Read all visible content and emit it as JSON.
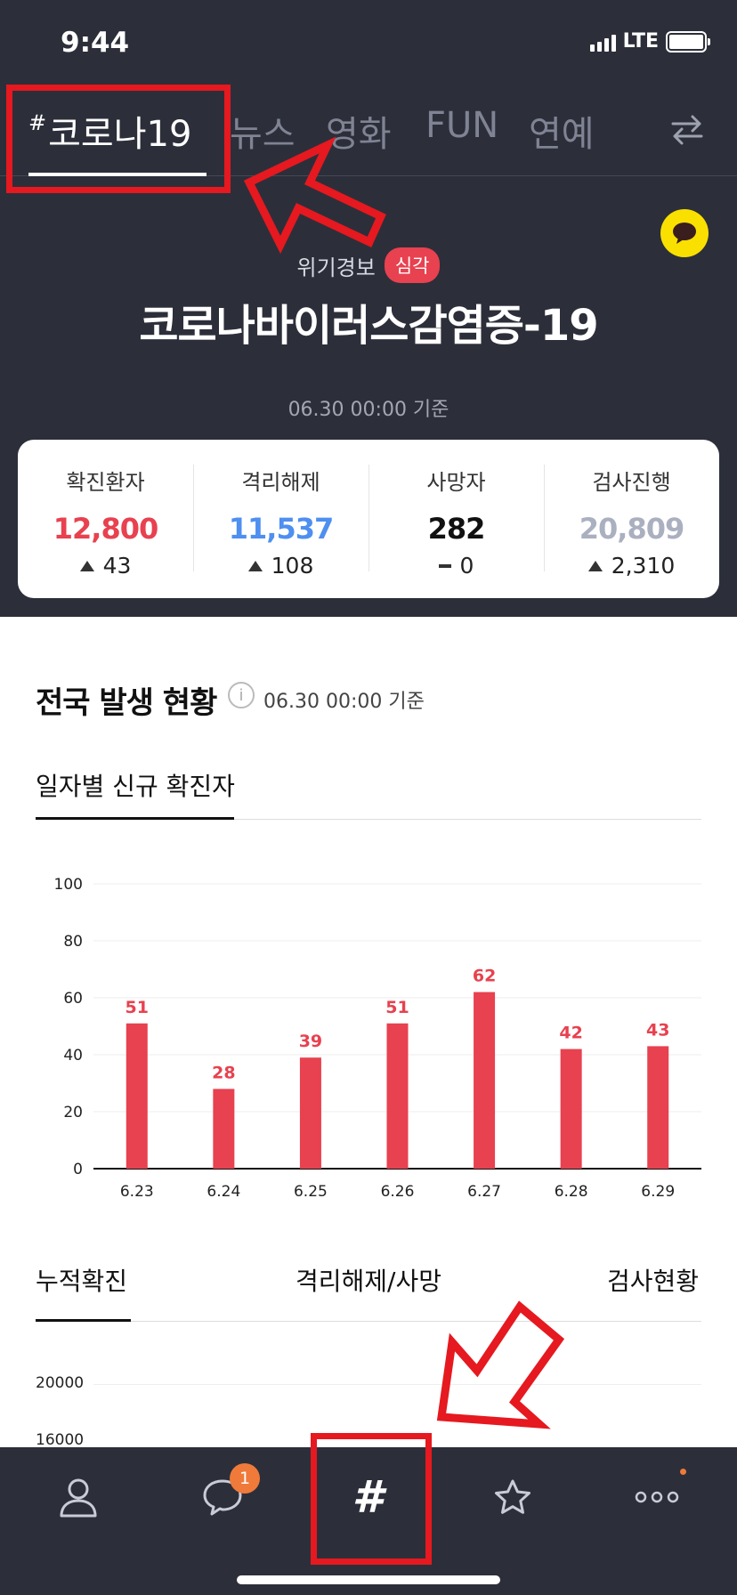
{
  "status_bar": {
    "time": "9:44",
    "network": "LTE"
  },
  "top_tabs": [
    {
      "label": "코로나19",
      "prefix": "#",
      "active": true
    },
    {
      "label": "뉴스",
      "active": false
    },
    {
      "label": "영화",
      "active": false
    },
    {
      "label": "FUN",
      "active": false
    },
    {
      "label": "연예",
      "active": false
    }
  ],
  "icons": {
    "swap": "swap-arrows-icon",
    "talk": "chat-bubble-icon"
  },
  "alert": {
    "label": "위기경보",
    "level": "심각"
  },
  "main_title": "코로나바이러스감염증-19",
  "base_time": "06.30 00:00 기준",
  "stats": [
    {
      "label": "확진환자",
      "value": "12,800",
      "change": "43",
      "trend": "up",
      "color": "#e8414f"
    },
    {
      "label": "격리해제",
      "value": "11,537",
      "change": "108",
      "trend": "up",
      "color": "#4e8ff0"
    },
    {
      "label": "사망자",
      "value": "282",
      "change": "0",
      "trend": "flat",
      "color": "#111111"
    },
    {
      "label": "검사진행",
      "value": "20,809",
      "change": "2,310",
      "trend": "up",
      "color": "#aab0c0"
    }
  ],
  "national": {
    "title": "전국 발생 현황",
    "time": "06.30 00:00 기준",
    "daily_tab": "일자별 신규 확진자"
  },
  "chart_data": {
    "type": "bar",
    "categories": [
      "6.23",
      "6.24",
      "6.25",
      "6.26",
      "6.27",
      "6.28",
      "6.29"
    ],
    "values": [
      51,
      28,
      39,
      51,
      62,
      42,
      43
    ],
    "yticks": [
      0,
      20,
      40,
      60,
      80,
      100
    ],
    "ylim": [
      0,
      100
    ],
    "bar_color": "#e8414f",
    "title": "",
    "xlabel": "",
    "ylabel": ""
  },
  "lower_tabs": [
    {
      "label": "누적확진",
      "active": true
    },
    {
      "label": "격리해제/사망",
      "active": false
    },
    {
      "label": "검사현황",
      "active": false
    }
  ],
  "lower_chart": {
    "yticks": [
      "20000",
      "16000"
    ]
  },
  "bottom_nav": {
    "items": [
      "profile-icon",
      "chat-icon",
      "hashtag-icon",
      "star-icon",
      "more-icon"
    ],
    "hash_symbol": "#",
    "chat_badge": "1"
  },
  "colors": {
    "dark_bg": "#2c2f3a",
    "accent_red": "#e8414f",
    "annotation_red": "#e5191f"
  }
}
